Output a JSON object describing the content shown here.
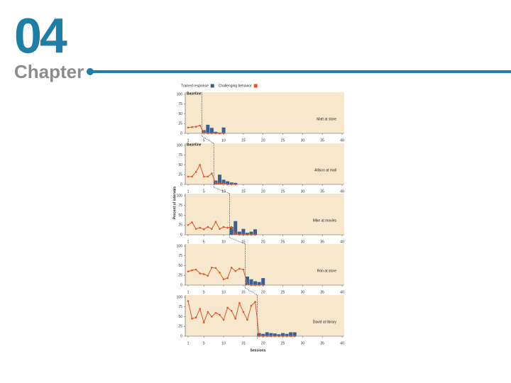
{
  "header": {
    "number": "04",
    "label": "Chapter"
  },
  "chart_data": [
    {
      "type": "multiple-baseline",
      "title": "Baseline",
      "label": "Matt at store",
      "phase_change": 4.5,
      "xlim": [
        1,
        40
      ],
      "xticks": [
        1,
        5,
        10,
        15,
        20,
        25,
        30,
        35,
        40
      ],
      "ylim": [
        0,
        100
      ],
      "yticks": [
        0,
        25,
        50,
        75,
        100
      ],
      "x": [
        1,
        2,
        3,
        4,
        5,
        6,
        7,
        8,
        9,
        10
      ],
      "series": [
        {
          "name": "Trained response",
          "color": "#3b5f8e",
          "kind": "bar",
          "values": [
            null,
            null,
            null,
            null,
            8,
            22,
            14,
            4,
            2,
            15
          ]
        },
        {
          "name": "Challenging behavior",
          "color": "#e0572a",
          "kind": "line",
          "values": [
            15,
            16,
            17,
            20,
            2,
            0,
            0,
            0,
            0,
            0
          ]
        }
      ]
    },
    {
      "type": "multiple-baseline",
      "title": "Baseline",
      "label": "Allison at mall",
      "phase_change": 7.5,
      "xlim": [
        1,
        40
      ],
      "xticks": [
        1,
        5,
        10,
        15,
        20,
        25,
        30,
        35,
        40
      ],
      "ylim": [
        0,
        100
      ],
      "yticks": [
        0,
        25,
        50,
        75,
        100
      ],
      "x": [
        1,
        2,
        3,
        4,
        5,
        6,
        7,
        8,
        9,
        10,
        11,
        12,
        13
      ],
      "series": [
        {
          "color": "#3b5f8e",
          "kind": "bar",
          "values": [
            null,
            null,
            null,
            null,
            null,
            null,
            null,
            10,
            25,
            12,
            8,
            5,
            4
          ]
        },
        {
          "color": "#e0572a",
          "kind": "line",
          "values": [
            20,
            20,
            32,
            50,
            20,
            20,
            28,
            3,
            3,
            2,
            0,
            0,
            0
          ]
        }
      ]
    },
    {
      "type": "multiple-baseline",
      "label": "Mike at movies",
      "ylabel": "Percent of intervals",
      "phase_change": 11.5,
      "xlim": [
        1,
        40
      ],
      "xticks": [
        1,
        5,
        10,
        15,
        20,
        25,
        30,
        35,
        40
      ],
      "ylim": [
        0,
        100
      ],
      "yticks": [
        0,
        25,
        50,
        75,
        100
      ],
      "x": [
        1,
        2,
        3,
        4,
        5,
        6,
        7,
        8,
        9,
        10,
        11,
        12,
        13,
        14,
        15,
        16,
        17,
        18
      ],
      "series": [
        {
          "color": "#3b5f8e",
          "kind": "bar",
          "values": [
            null,
            null,
            null,
            null,
            null,
            null,
            null,
            null,
            null,
            null,
            null,
            20,
            35,
            8,
            15,
            5,
            8,
            14
          ]
        },
        {
          "color": "#e0572a",
          "kind": "line",
          "values": [
            25,
            32,
            15,
            18,
            14,
            20,
            15,
            33,
            15,
            20,
            18,
            20,
            2,
            0,
            0,
            0,
            0,
            0
          ]
        }
      ]
    },
    {
      "type": "multiple-baseline",
      "label": "Ron at store",
      "phase_change": 15.5,
      "xlim": [
        1,
        40
      ],
      "xticks": [
        1,
        5,
        10,
        15,
        20,
        25,
        30,
        35,
        40
      ],
      "ylim": [
        0,
        100
      ],
      "yticks": [
        0,
        25,
        50,
        75,
        100
      ],
      "x": [
        1,
        2,
        3,
        4,
        5,
        6,
        7,
        8,
        9,
        10,
        11,
        12,
        13,
        14,
        15,
        16,
        17,
        18,
        19,
        20
      ],
      "series": [
        {
          "color": "#3b5f8e",
          "kind": "bar",
          "values": [
            null,
            null,
            null,
            null,
            null,
            null,
            null,
            null,
            null,
            null,
            null,
            null,
            null,
            null,
            null,
            22,
            15,
            10,
            8,
            18
          ]
        },
        {
          "color": "#e0572a",
          "kind": "line",
          "values": [
            35,
            38,
            40,
            30,
            28,
            24,
            45,
            44,
            32,
            15,
            18,
            45,
            36,
            42,
            40,
            2,
            0,
            0,
            0,
            0
          ]
        }
      ]
    },
    {
      "type": "multiple-baseline",
      "label": "David at library",
      "xlabel": "Sessions",
      "phase_change": 18.5,
      "xlim": [
        1,
        40
      ],
      "xticks": [
        1,
        5,
        10,
        15,
        20,
        25,
        30,
        35,
        40
      ],
      "ylim": [
        0,
        100
      ],
      "yticks": [
        0,
        25,
        50,
        75,
        100
      ],
      "x": [
        1,
        2,
        3,
        4,
        5,
        6,
        7,
        8,
        9,
        10,
        11,
        12,
        13,
        14,
        15,
        16,
        17,
        18,
        19,
        20,
        21,
        22,
        23,
        24,
        25,
        26,
        27,
        28
      ],
      "series": [
        {
          "color": "#3b5f8e",
          "kind": "bar",
          "values": [
            null,
            null,
            null,
            null,
            null,
            null,
            null,
            null,
            null,
            null,
            null,
            null,
            null,
            null,
            null,
            null,
            null,
            null,
            8,
            6,
            10,
            8,
            7,
            5,
            8,
            6,
            10,
            10
          ]
        },
        {
          "color": "#e0572a",
          "kind": "line",
          "values": [
            90,
            45,
            48,
            70,
            35,
            62,
            50,
            60,
            55,
            42,
            73,
            65,
            45,
            85,
            62,
            42,
            78,
            88,
            0,
            0,
            0,
            0,
            0,
            0,
            0,
            0,
            0,
            0
          ]
        }
      ]
    }
  ]
}
